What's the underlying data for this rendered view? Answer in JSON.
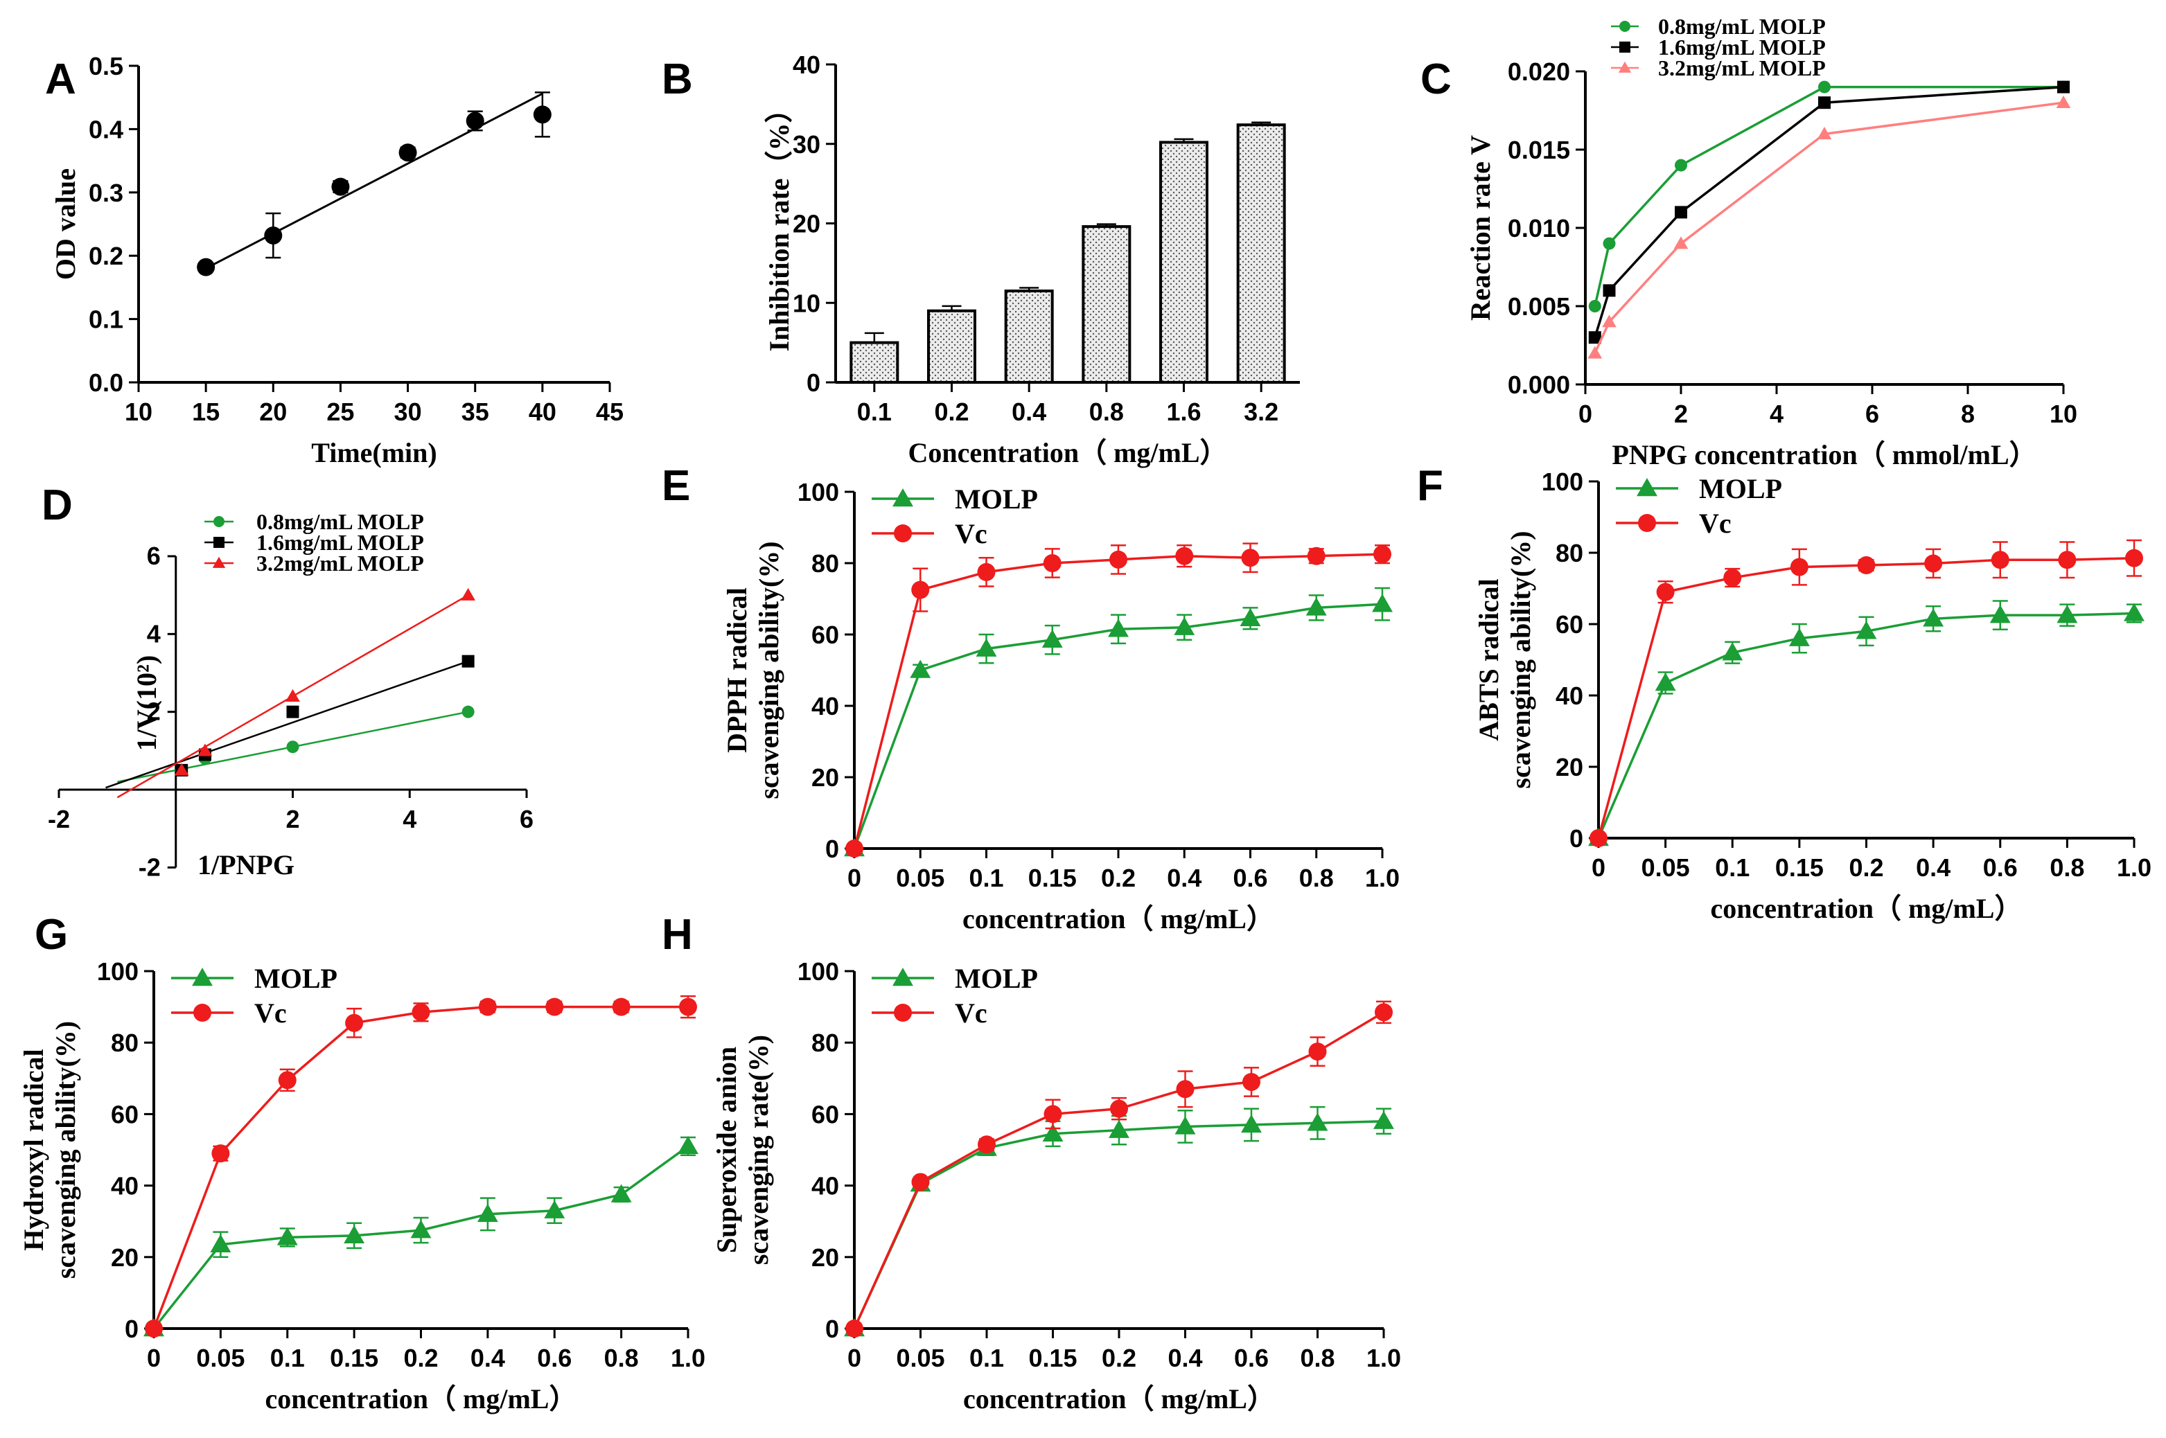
{
  "colors": {
    "green": "#1a9e35",
    "black": "#000000",
    "red": "#ee1c1c",
    "salmon": "#ff7f7f",
    "bar_fill": "#e9e9e9"
  },
  "chart_data": [
    {
      "id": "A",
      "label": "A",
      "type": "scatter",
      "xlabel": "Time(min)",
      "ylabel": "OD value",
      "xlim": [
        10,
        45
      ],
      "ylim": [
        0.0,
        0.5
      ],
      "xticks": [
        "10",
        "15",
        "20",
        "25",
        "30",
        "35",
        "40",
        "45"
      ],
      "yticks": [
        "0.0",
        "0.1",
        "0.2",
        "0.3",
        "0.4",
        "0.5"
      ],
      "series": [
        {
          "name": "OD",
          "x": [
            15,
            20,
            25,
            30,
            35,
            40
          ],
          "y": [
            0.182,
            0.232,
            0.309,
            0.363,
            0.413,
            0.423
          ],
          "err": [
            0.004,
            0.035,
            0.009,
            0.008,
            0.015,
            0.035
          ],
          "marker": "circle",
          "color": "#000000",
          "connect": false
        }
      ],
      "fit": {
        "x": [
          15,
          40
        ],
        "y": [
          0.18,
          0.456
        ]
      },
      "legend": []
    },
    {
      "id": "B",
      "label": "B",
      "type": "bar",
      "xlabel": "Concentration（ mg/mL）",
      "ylabel": "Inhibition rate（%）",
      "ylim": [
        0,
        40
      ],
      "yticks": [
        "0",
        "10",
        "20",
        "30",
        "40"
      ],
      "categories": [
        "0.1",
        "0.2",
        "0.4",
        "0.8",
        "1.6",
        "3.2"
      ],
      "values": [
        5.0,
        9.0,
        11.5,
        19.6,
        30.2,
        32.4
      ],
      "err": [
        1.2,
        0.6,
        0.4,
        0.3,
        0.4,
        0.3
      ],
      "legend": []
    },
    {
      "id": "C",
      "label": "C",
      "type": "line",
      "xlabel": "PNPG concentration（ mmol/mL）",
      "ylabel": "Reaction rate V",
      "xlim": [
        0,
        10
      ],
      "ylim": [
        0,
        0.02
      ],
      "xticks": [
        "0",
        "2",
        "4",
        "6",
        "8",
        "10"
      ],
      "yticks": [
        "0.000",
        "0.005",
        "0.010",
        "0.015",
        "0.020"
      ],
      "series": [
        {
          "name": "0.8mg/mL MOLP",
          "x": [
            0.2,
            0.5,
            2,
            5,
            10
          ],
          "y": [
            0.005,
            0.009,
            0.014,
            0.019,
            0.019
          ],
          "marker": "circle",
          "color": "#1a9e35",
          "connect": true
        },
        {
          "name": "1.6mg/mL MOLP",
          "x": [
            0.2,
            0.5,
            2,
            5,
            10
          ],
          "y": [
            0.003,
            0.006,
            0.011,
            0.018,
            0.019
          ],
          "marker": "square",
          "color": "#000000",
          "connect": true
        },
        {
          "name": "3.2mg/mL MOLP",
          "x": [
            0.2,
            0.5,
            2,
            5,
            10
          ],
          "y": [
            0.002,
            0.004,
            0.009,
            0.016,
            0.018
          ],
          "marker": "triangle",
          "color": "#ff7f7f",
          "connect": true
        }
      ],
      "legend": [
        "0.8mg/mL MOLP",
        "1.6mg/mL MOLP",
        "3.2mg/mL MOLP"
      ]
    },
    {
      "id": "D",
      "label": "D",
      "type": "scatter",
      "xlabel": "1/PNPG",
      "ylabel": "1/V(10²)",
      "xlim": [
        -2,
        6
      ],
      "ylim": [
        -2,
        6
      ],
      "xticks": [
        "-2",
        "2",
        "4",
        "6"
      ],
      "yticks": [
        "-2",
        "2",
        "4",
        "6"
      ],
      "series": [
        {
          "name": "0.8mg/mL MOLP",
          "x": [
            0.1,
            0.5,
            2,
            5
          ],
          "y": [
            0.5,
            0.8,
            1.1,
            2.0
          ],
          "marker": "circle",
          "color": "#1a9e35",
          "fit": [
            -1.0,
            0.2,
            5.0,
            2.0
          ]
        },
        {
          "name": "1.6mg/mL MOLP",
          "x": [
            0.1,
            0.5,
            2,
            5
          ],
          "y": [
            0.5,
            0.9,
            2.0,
            3.3
          ],
          "marker": "square",
          "color": "#000000",
          "fit": [
            -1.2,
            0.05,
            5.0,
            3.3
          ]
        },
        {
          "name": "3.2mg/mL MOLP",
          "x": [
            0.1,
            0.5,
            2,
            5
          ],
          "y": [
            0.5,
            1.0,
            2.4,
            5.0
          ],
          "marker": "triangle",
          "color": "#ee1c1c",
          "fit": [
            -1.0,
            -0.2,
            5.0,
            5.0
          ]
        }
      ],
      "legend": [
        "0.8mg/mL MOLP",
        "1.6mg/mL MOLP",
        "3.2mg/mL MOLP"
      ]
    },
    {
      "id": "E",
      "label": "E",
      "type": "line",
      "xlabel": "concentration（  mg/mL）",
      "ylabel": [
        "DPPH radical",
        "scavenging ability(%)"
      ],
      "ylim": [
        0,
        100
      ],
      "yticks": [
        "0",
        "20",
        "40",
        "60",
        "80",
        "100"
      ],
      "categories": [
        "0",
        "0.05",
        "0.1",
        "0.15",
        "0.2",
        "0.4",
        "0.6",
        "0.8",
        "1.0"
      ],
      "series": [
        {
          "name": "MOLP",
          "values": [
            0,
            50,
            56,
            58.5,
            61.5,
            62,
            64.5,
            67.5,
            68.5
          ],
          "err": [
            0,
            1.5,
            4,
            4,
            4,
            3.5,
            3,
            3.5,
            4.5
          ],
          "marker": "triangle",
          "color": "#1a9e35"
        },
        {
          "name": "Vc",
          "values": [
            0,
            72.5,
            77.5,
            80,
            81,
            82,
            81.5,
            82,
            82.5
          ],
          "err": [
            0,
            6,
            4,
            4,
            4,
            3,
            4,
            2,
            2.5
          ],
          "marker": "circle",
          "color": "#ee1c1c"
        }
      ],
      "legend": [
        "MOLP",
        "Vc"
      ]
    },
    {
      "id": "F",
      "label": "F",
      "type": "line",
      "xlabel": "concentration（ mg/mL）",
      "ylabel": [
        "ABTS radical",
        "scavenging ability(%)"
      ],
      "ylim": [
        0,
        100
      ],
      "yticks": [
        "0",
        "20",
        "40",
        "60",
        "80",
        "100"
      ],
      "categories": [
        "0",
        "0.05",
        "0.1",
        "0.15",
        "0.2",
        "0.4",
        "0.6",
        "0.8",
        "1.0"
      ],
      "series": [
        {
          "name": "MOLP",
          "values": [
            0,
            43.5,
            52,
            56,
            58,
            61.5,
            62.5,
            62.5,
            63
          ],
          "err": [
            0,
            3,
            3,
            4,
            4,
            3.5,
            4,
            3,
            2.5
          ],
          "marker": "triangle",
          "color": "#1a9e35"
        },
        {
          "name": "Vc",
          "values": [
            0,
            69,
            73,
            76,
            76.5,
            77,
            78,
            78,
            78.5
          ],
          "err": [
            0,
            3,
            2.5,
            5,
            1.5,
            4,
            5,
            5,
            5
          ],
          "marker": "circle",
          "color": "#ee1c1c"
        }
      ],
      "legend": [
        "MOLP",
        "Vc"
      ]
    },
    {
      "id": "G",
      "label": "G",
      "type": "line",
      "xlabel": "concentration（ mg/mL）",
      "ylabel": [
        "Hydroxyl radical",
        "scavenging ability(%)"
      ],
      "ylim": [
        0,
        100
      ],
      "yticks": [
        "0",
        "20",
        "40",
        "60",
        "80",
        "100"
      ],
      "categories": [
        "0",
        "0.05",
        "0.1",
        "0.15",
        "0.2",
        "0.4",
        "0.6",
        "0.8",
        "1.0"
      ],
      "series": [
        {
          "name": "MOLP",
          "values": [
            0,
            23.5,
            25.5,
            26,
            27.5,
            32,
            33,
            37.5,
            51
          ],
          "err": [
            0,
            3.5,
            2.5,
            3.5,
            3.5,
            4.5,
            3.5,
            2,
            2.5
          ],
          "marker": "triangle",
          "color": "#1a9e35"
        },
        {
          "name": "Vc",
          "values": [
            0,
            49,
            69.5,
            85.5,
            88.5,
            90,
            90,
            90,
            90
          ],
          "err": [
            0,
            2,
            3,
            4,
            2.5,
            1.5,
            1.5,
            1.5,
            3
          ],
          "marker": "circle",
          "color": "#ee1c1c"
        }
      ],
      "legend": [
        "MOLP",
        "Vc"
      ]
    },
    {
      "id": "H",
      "label": "H",
      "type": "line",
      "xlabel": "concentration（ mg/mL）",
      "ylabel": [
        "Superoxide anion",
        "scavenging rate(%)"
      ],
      "ylim": [
        0,
        100
      ],
      "yticks": [
        "0",
        "20",
        "40",
        "60",
        "80",
        "100"
      ],
      "categories": [
        "0",
        "0.05",
        "0.1",
        "0.15",
        "0.2",
        "0.4",
        "0.6",
        "0.8",
        "1.0"
      ],
      "series": [
        {
          "name": "MOLP",
          "values": [
            0,
            40.5,
            50.5,
            54.5,
            55.5,
            56.5,
            57,
            57.5,
            58
          ],
          "err": [
            0,
            1.5,
            2,
            3.5,
            4,
            4.5,
            4.5,
            4.5,
            3.5
          ],
          "marker": "triangle",
          "color": "#1a9e35"
        },
        {
          "name": "Vc",
          "values": [
            0,
            41,
            51.5,
            60,
            61.5,
            67,
            69,
            77.5,
            88.5
          ],
          "err": [
            0,
            1,
            1.5,
            4,
            3,
            5,
            4,
            4,
            3
          ],
          "marker": "circle",
          "color": "#ee1c1c"
        }
      ],
      "legend": [
        "MOLP",
        "Vc"
      ]
    }
  ]
}
